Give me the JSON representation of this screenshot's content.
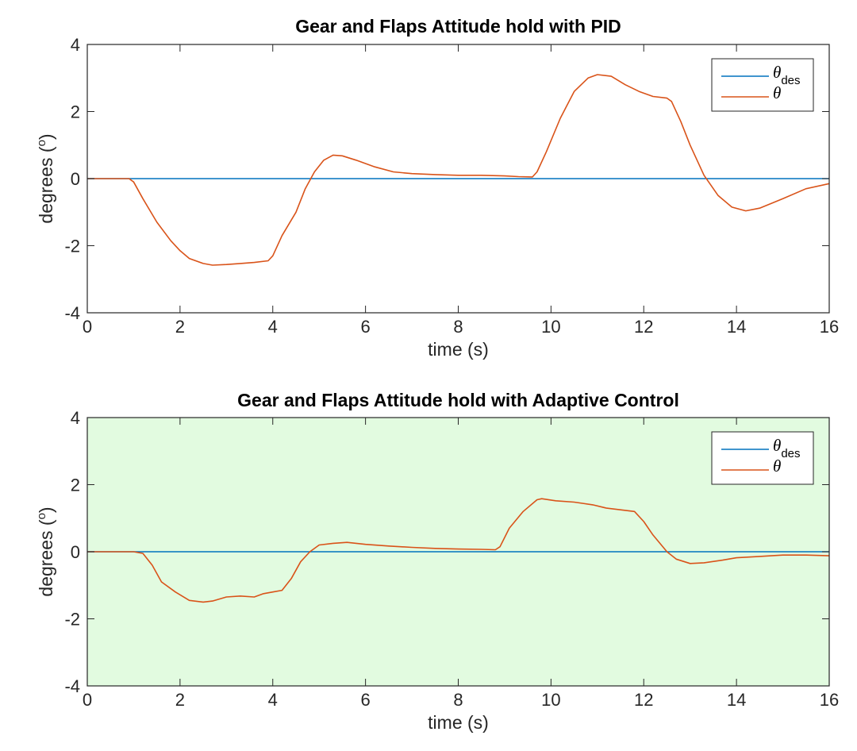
{
  "chart_data": [
    {
      "type": "line",
      "title": "Gear and Flaps Attitude hold with PID",
      "xlabel": "time (s)",
      "ylabel": "degrees (°)",
      "ylabel_parts": {
        "text": "degrees (",
        "sup": "o",
        "close": ")"
      },
      "xlim": [
        0,
        16
      ],
      "ylim": [
        -4,
        4
      ],
      "xticks": [
        "0",
        "2",
        "4",
        "6",
        "8",
        "10",
        "12",
        "14",
        "16"
      ],
      "yticks": [
        "-4",
        "-2",
        "0",
        "2",
        "4"
      ],
      "ytick_values": [
        -4,
        -2,
        0,
        2,
        4
      ],
      "grid": false,
      "background": "#ffffff",
      "legend_position": "top-right",
      "series": [
        {
          "name": "θdes",
          "legend": {
            "symbol": "θ",
            "sub": "des"
          },
          "color": "#0072bd",
          "x": [
            0,
            16
          ],
          "y": [
            0,
            0
          ]
        },
        {
          "name": "θ",
          "legend": {
            "symbol": "θ",
            "sub": ""
          },
          "color": "#d95319",
          "x": [
            0,
            0.5,
            0.9,
            1.0,
            1.2,
            1.5,
            1.8,
            2.0,
            2.2,
            2.5,
            2.7,
            3.0,
            3.3,
            3.6,
            3.9,
            4.0,
            4.2,
            4.5,
            4.7,
            4.9,
            5.1,
            5.3,
            5.5,
            5.8,
            6.2,
            6.6,
            7.0,
            7.5,
            8.0,
            8.5,
            9.0,
            9.3,
            9.6,
            9.7,
            9.9,
            10.2,
            10.5,
            10.8,
            11.0,
            11.3,
            11.6,
            11.9,
            12.2,
            12.5,
            12.6,
            12.8,
            13.0,
            13.3,
            13.6,
            13.9,
            14.2,
            14.5,
            15.0,
            15.5,
            16.0
          ],
          "y": [
            0,
            0,
            0,
            -0.1,
            -0.6,
            -1.3,
            -1.85,
            -2.15,
            -2.38,
            -2.53,
            -2.58,
            -2.56,
            -2.53,
            -2.5,
            -2.45,
            -2.3,
            -1.7,
            -1.0,
            -0.3,
            0.2,
            0.55,
            0.7,
            0.68,
            0.55,
            0.35,
            0.2,
            0.15,
            0.12,
            0.1,
            0.1,
            0.08,
            0.06,
            0.05,
            0.2,
            0.8,
            1.8,
            2.6,
            3.0,
            3.1,
            3.05,
            2.8,
            2.6,
            2.45,
            2.4,
            2.3,
            1.7,
            1.0,
            0.1,
            -0.5,
            -0.85,
            -0.96,
            -0.88,
            -0.6,
            -0.3,
            -0.15
          ]
        }
      ]
    },
    {
      "type": "line",
      "title": "Gear and Flaps Attitude hold with Adaptive Control",
      "xlabel": "time (s)",
      "ylabel": "degrees (°)",
      "ylabel_parts": {
        "text": "degrees (",
        "sup": "o",
        "close": ")"
      },
      "xlim": [
        0,
        16
      ],
      "ylim": [
        -4,
        4
      ],
      "xticks": [
        "0",
        "2",
        "4",
        "6",
        "8",
        "10",
        "12",
        "14",
        "16"
      ],
      "yticks": [
        "-4",
        "-2",
        "0",
        "2",
        "4"
      ],
      "ytick_values": [
        -4,
        -2,
        0,
        2,
        4
      ],
      "grid": false,
      "background": "#e2fbe0",
      "legend_position": "top-right",
      "series": [
        {
          "name": "θdes",
          "legend": {
            "symbol": "θ",
            "sub": "des"
          },
          "color": "#0072bd",
          "x": [
            0,
            16
          ],
          "y": [
            0,
            0
          ]
        },
        {
          "name": "θ",
          "legend": {
            "symbol": "θ",
            "sub": ""
          },
          "color": "#d95319",
          "x": [
            0,
            0.5,
            1.0,
            1.2,
            1.4,
            1.6,
            1.9,
            2.2,
            2.5,
            2.7,
            3.0,
            3.3,
            3.6,
            3.8,
            4.0,
            4.2,
            4.4,
            4.6,
            4.8,
            5.0,
            5.3,
            5.6,
            6.0,
            6.5,
            7.0,
            7.5,
            8.0,
            8.5,
            8.8,
            8.9,
            9.1,
            9.4,
            9.7,
            9.8,
            10.1,
            10.5,
            10.9,
            11.2,
            11.5,
            11.8,
            12.0,
            12.2,
            12.5,
            12.7,
            13.0,
            13.3,
            13.7,
            14.0,
            14.5,
            15.0,
            15.5,
            16.0
          ],
          "y": [
            0,
            0,
            0,
            -0.05,
            -0.4,
            -0.9,
            -1.2,
            -1.45,
            -1.5,
            -1.47,
            -1.35,
            -1.32,
            -1.35,
            -1.25,
            -1.2,
            -1.15,
            -0.8,
            -0.3,
            0.0,
            0.2,
            0.25,
            0.28,
            0.22,
            0.17,
            0.13,
            0.1,
            0.08,
            0.07,
            0.06,
            0.15,
            0.7,
            1.2,
            1.55,
            1.58,
            1.52,
            1.48,
            1.4,
            1.3,
            1.25,
            1.2,
            0.9,
            0.5,
            0.0,
            -0.22,
            -0.35,
            -0.33,
            -0.25,
            -0.18,
            -0.14,
            -0.1,
            -0.1,
            -0.12
          ]
        }
      ]
    }
  ]
}
